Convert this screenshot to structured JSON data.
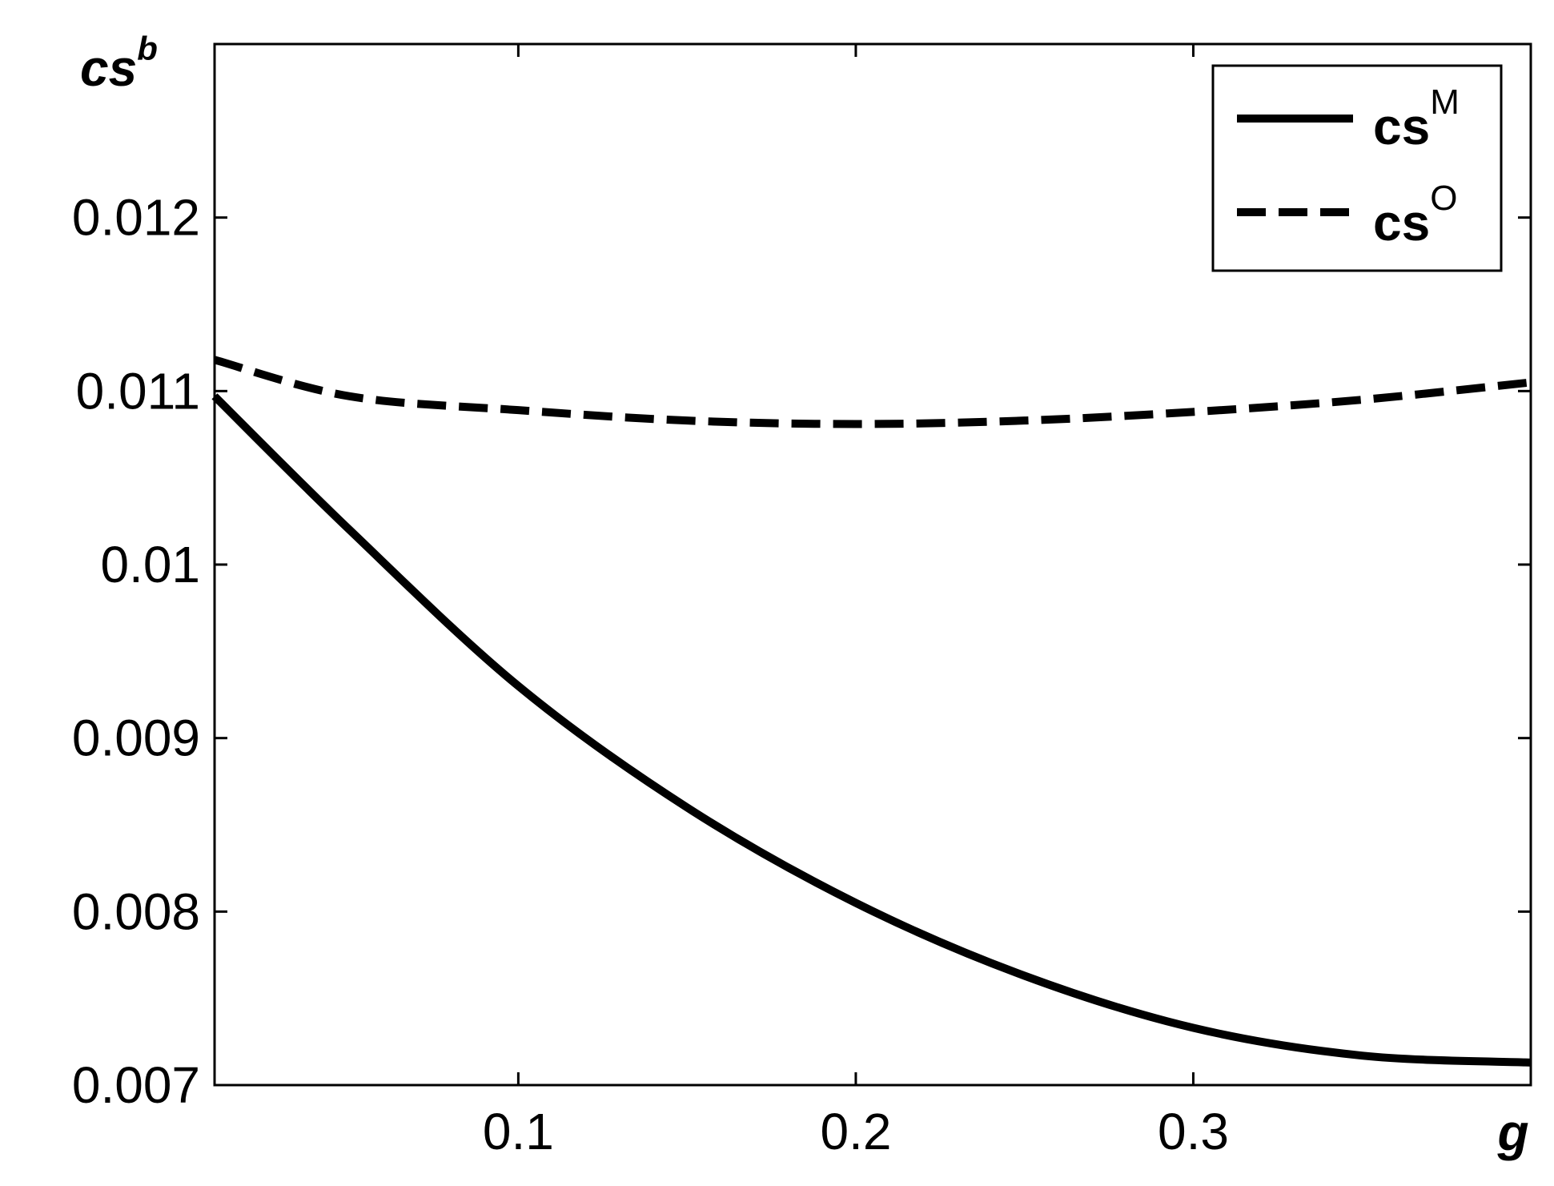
{
  "chart_data": {
    "type": "line",
    "title": "",
    "xlabel": "g",
    "ylabel": {
      "base": "cs",
      "sup": "b"
    },
    "xlim": [
      0.01,
      0.4
    ],
    "ylim": [
      0.007,
      0.013
    ],
    "x_ticks": [
      0.1,
      0.2,
      0.3
    ],
    "x_tick_labels": [
      "0.1",
      "0.2",
      "0.3"
    ],
    "y_ticks": [
      0.007,
      0.008,
      0.009,
      0.01,
      0.011,
      0.012
    ],
    "y_tick_labels": [
      "0.007",
      "0.008",
      "0.009",
      "0.01",
      "0.011",
      "0.012"
    ],
    "grid": false,
    "legend_position": "top-right",
    "series": [
      {
        "name": {
          "base": "cs",
          "sup": "M"
        },
        "style": "solid",
        "x": [
          0.01,
          0.05,
          0.1,
          0.15,
          0.2,
          0.25,
          0.3,
          0.35,
          0.4
        ],
        "y": [
          0.01097,
          0.0102,
          0.0093,
          0.0086,
          0.00805,
          0.00763,
          0.00733,
          0.00717,
          0.00713
        ]
      },
      {
        "name": {
          "base": "cs",
          "sup": "O"
        },
        "style": "dashed",
        "x": [
          0.01,
          0.05,
          0.1,
          0.15,
          0.2,
          0.25,
          0.3,
          0.35,
          0.4
        ],
        "y": [
          0.01118,
          0.01097,
          0.01089,
          0.01083,
          0.01081,
          0.01083,
          0.01088,
          0.01095,
          0.01105
        ]
      }
    ]
  }
}
